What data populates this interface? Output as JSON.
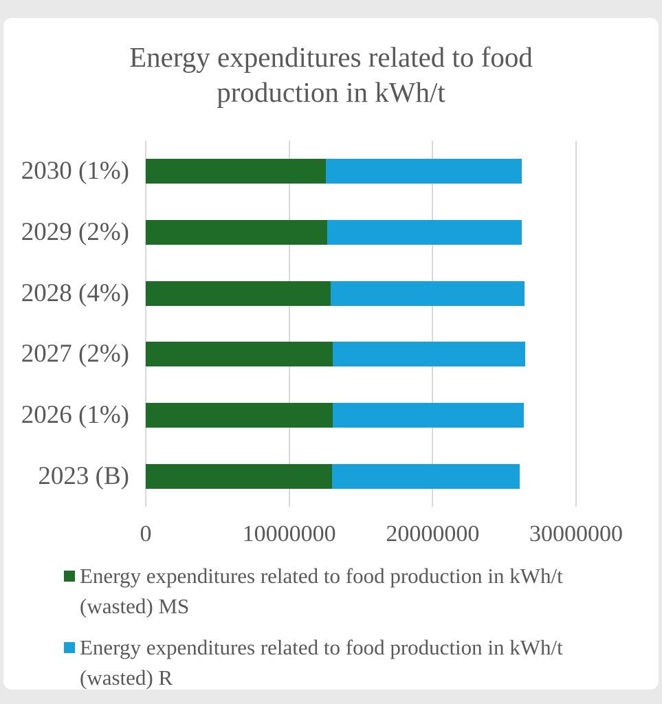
{
  "page": {
    "background_color": "#e9e9e9",
    "card_color": "#ffffff",
    "text_color": "#595959",
    "gridline_color": "#d9d9d9"
  },
  "chart_data": {
    "type": "bar",
    "orientation": "horizontal",
    "stacked": true,
    "title": "Energy expenditures related to food production in kWh/t",
    "title_lines": [
      "Energy expenditures related to food",
      "production in kWh/t"
    ],
    "categories": [
      "2030 (1%)",
      "2029 (2%)",
      "2028 (4%)",
      "2027 (2%)",
      "2026 (1%)",
      "2023 (B)"
    ],
    "series": [
      {
        "name": "Energy expenditures related to food production in kWh/t (wasted) MS",
        "color": "#1e6c28",
        "values": [
          12550000,
          12650000,
          12900000,
          13050000,
          13050000,
          13000000
        ]
      },
      {
        "name": "Energy expenditures related to food production in kWh/t (wasted) R",
        "color": "#18a0da",
        "values": [
          13650000,
          13550000,
          13500000,
          13400000,
          13300000,
          13050000
        ]
      }
    ],
    "xlabel": "",
    "ylabel": "",
    "xlim": [
      0,
      30000000
    ],
    "xticks": [
      0,
      10000000,
      20000000,
      30000000
    ],
    "xtick_labels": [
      "0",
      "10000000",
      "20000000",
      "30000000"
    ],
    "grid": "vertical",
    "legend_position": "bottom"
  },
  "legend": {
    "items": [
      {
        "color": "#1e6c28",
        "lines": [
          "Energy expenditures related to food production in kWh/t",
          "(wasted) MS"
        ]
      },
      {
        "color": "#18a0da",
        "lines": [
          "Energy expenditures related to food production in kWh/t",
          "(wasted) R"
        ]
      }
    ]
  }
}
